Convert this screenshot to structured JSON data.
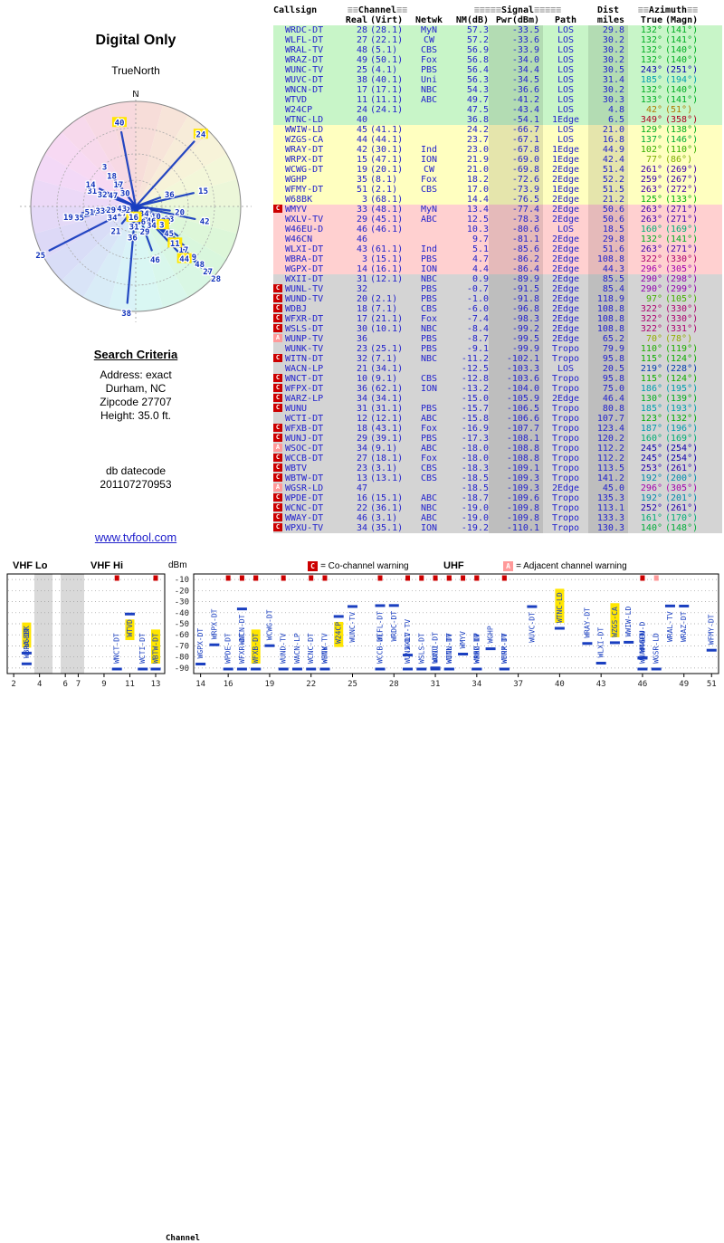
{
  "radar": {
    "title": "Digital Only",
    "orientation_label": "TrueNorth",
    "north_label": "N"
  },
  "search_criteria": {
    "heading": "Search Criteria",
    "lines": [
      "Address: exact",
      "Durham, NC",
      "Zipcode 27707",
      "Height: 35.0 ft."
    ],
    "datecode_label": "db datecode",
    "datecode": "201107270953"
  },
  "link": "www.tvfool.com",
  "table": {
    "header": {
      "callsign": "Callsign",
      "channel": "Channel",
      "signal": "Signal",
      "dist": "Dist",
      "azimuth": "Azimuth",
      "real": "Real",
      "virt": "(Virt)",
      "netwk": "Netwk",
      "nm": "NM(dB)",
      "pwr": "Pwr(dBm)",
      "path": "Path",
      "miles": "miles",
      "true": "True",
      "magn": "(Magn)",
      "decor_channel": "≡≡",
      "decor_signal": "≡≡≡≡≡",
      "decor_azimuth": "≡≡"
    }
  },
  "stations": [
    {
      "call": "WRDC-DT",
      "real": 28,
      "virt": "(28.1)",
      "net": "MyN",
      "nm": 57.3,
      "pwr": -33.5,
      "path": "LOS",
      "dist": 29.8,
      "az": 132,
      "magn": 141,
      "cls": "green",
      "warn": "",
      "hl": false
    },
    {
      "call": "WLFL-DT",
      "real": 27,
      "virt": "(22.1)",
      "net": "CW",
      "nm": 57.2,
      "pwr": -33.6,
      "path": "LOS",
      "dist": 30.2,
      "az": 132,
      "magn": 141,
      "cls": "green",
      "warn": "",
      "hl": false
    },
    {
      "call": "WRAL-TV",
      "real": 48,
      "virt": "(5.1)",
      "net": "CBS",
      "nm": 56.9,
      "pwr": -33.9,
      "path": "LOS",
      "dist": 30.2,
      "az": 132,
      "magn": 140,
      "cls": "green",
      "warn": "",
      "hl": false
    },
    {
      "call": "WRAZ-DT",
      "real": 49,
      "virt": "(50.1)",
      "net": "Fox",
      "nm": 56.8,
      "pwr": -34.0,
      "path": "LOS",
      "dist": 30.2,
      "az": 132,
      "magn": 140,
      "cls": "green",
      "warn": "",
      "hl": false
    },
    {
      "call": "WUNC-TV",
      "real": 25,
      "virt": "(4.1)",
      "net": "PBS",
      "nm": 56.4,
      "pwr": -34.4,
      "path": "LOS",
      "dist": 30.5,
      "az": 243,
      "magn": 251,
      "cls": "green",
      "warn": "",
      "hl": false
    },
    {
      "call": "WUVC-DT",
      "real": 38,
      "virt": "(40.1)",
      "net": "Uni",
      "nm": 56.3,
      "pwr": -34.5,
      "path": "LOS",
      "dist": 31.4,
      "az": 185,
      "magn": 194,
      "cls": "green",
      "warn": "",
      "hl": false
    },
    {
      "call": "WNCN-DT",
      "real": 17,
      "virt": "(17.1)",
      "net": "NBC",
      "nm": 54.3,
      "pwr": -36.6,
      "path": "LOS",
      "dist": 30.2,
      "az": 132,
      "magn": 140,
      "cls": "green",
      "warn": "",
      "hl": false
    },
    {
      "call": "WTVD",
      "real": 11,
      "virt": "(11.1)",
      "net": "ABC",
      "nm": 49.7,
      "pwr": -41.2,
      "path": "LOS",
      "dist": 30.3,
      "az": 133,
      "magn": 141,
      "cls": "green",
      "warn": "",
      "hl": true
    },
    {
      "call": "W24CP",
      "real": 24,
      "virt": "(24.1)",
      "net": "",
      "nm": 47.5,
      "pwr": -43.4,
      "path": "LOS",
      "dist": 4.8,
      "az": 42,
      "magn": 51,
      "cls": "green",
      "warn": "",
      "hl": true
    },
    {
      "call": "WTNC-LD",
      "real": 40,
      "virt": "",
      "net": "",
      "nm": 36.8,
      "pwr": -54.1,
      "path": "1Edge",
      "dist": 6.5,
      "az": 349,
      "magn": 358,
      "cls": "green",
      "warn": "",
      "hl": true
    },
    {
      "call": "WWIW-LD",
      "real": 45,
      "virt": "(41.1)",
      "net": "",
      "nm": 24.2,
      "pwr": -66.7,
      "path": "LOS",
      "dist": 21.0,
      "az": 129,
      "magn": 138,
      "cls": "yellow",
      "warn": "",
      "hl": false
    },
    {
      "call": "WZGS-CA",
      "real": 44,
      "virt": "(44.1)",
      "net": "",
      "nm": 23.7,
      "pwr": -67.1,
      "path": "LOS",
      "dist": 16.8,
      "az": 137,
      "magn": 146,
      "cls": "yellow",
      "warn": "",
      "hl": true
    },
    {
      "call": "WRAY-DT",
      "real": 42,
      "virt": "(30.1)",
      "net": "Ind",
      "nm": 23.0,
      "pwr": -67.8,
      "path": "1Edge",
      "dist": 44.9,
      "az": 102,
      "magn": 110,
      "cls": "yellow",
      "warn": "",
      "hl": false
    },
    {
      "call": "WRPX-DT",
      "real": 15,
      "virt": "(47.1)",
      "net": "ION",
      "nm": 21.9,
      "pwr": -69.0,
      "path": "1Edge",
      "dist": 42.4,
      "az": 77,
      "magn": 86,
      "cls": "yellow",
      "warn": "",
      "hl": false
    },
    {
      "call": "WCWG-DT",
      "real": 19,
      "virt": "(20.1)",
      "net": "CW",
      "nm": 21.0,
      "pwr": -69.8,
      "path": "2Edge",
      "dist": 51.4,
      "az": 261,
      "magn": 269,
      "cls": "yellow",
      "warn": "",
      "hl": false
    },
    {
      "call": "WGHP",
      "real": 35,
      "virt": "(8.1)",
      "net": "Fox",
      "nm": 18.2,
      "pwr": -72.6,
      "path": "2Edge",
      "dist": 52.2,
      "az": 259,
      "magn": 267,
      "cls": "yellow",
      "warn": "",
      "hl": false
    },
    {
      "call": "WFMY-DT",
      "real": 51,
      "virt": "(2.1)",
      "net": "CBS",
      "nm": 17.0,
      "pwr": -73.9,
      "path": "1Edge",
      "dist": 51.5,
      "az": 263,
      "magn": 272,
      "cls": "yellow",
      "warn": "",
      "hl": false
    },
    {
      "call": "W68BK",
      "real": 3,
      "virt": "(68.1)",
      "net": "",
      "nm": 14.4,
      "pwr": -76.5,
      "path": "2Edge",
      "dist": 21.2,
      "az": 125,
      "magn": 133,
      "cls": "yellow",
      "warn": "",
      "hl": true
    },
    {
      "call": "WMYV",
      "real": 33,
      "virt": "(48.1)",
      "net": "MyN",
      "nm": 13.4,
      "pwr": -77.4,
      "path": "2Edge",
      "dist": 50.6,
      "az": 263,
      "magn": 271,
      "cls": "pink",
      "warn": "C",
      "hl": false
    },
    {
      "call": "WXLV-TV",
      "real": 29,
      "virt": "(45.1)",
      "net": "ABC",
      "nm": 12.5,
      "pwr": -78.3,
      "path": "2Edge",
      "dist": 50.6,
      "az": 263,
      "magn": 271,
      "cls": "pink",
      "warn": "",
      "hl": false
    },
    {
      "call": "W46EU-D",
      "real": 46,
      "virt": "(46.1)",
      "net": "",
      "nm": 10.3,
      "pwr": -80.6,
      "path": "LOS",
      "dist": 18.5,
      "az": 160,
      "magn": 169,
      "cls": "pink",
      "warn": "",
      "hl": false
    },
    {
      "call": "W46CN",
      "real": 46,
      "virt": "",
      "net": "",
      "nm": 9.7,
      "pwr": -81.1,
      "path": "2Edge",
      "dist": 29.8,
      "az": 132,
      "magn": 141,
      "cls": "pink",
      "warn": "",
      "hl": false
    },
    {
      "call": "WLXI-DT",
      "real": 43,
      "virt": "(61.1)",
      "net": "Ind",
      "nm": 5.1,
      "pwr": -85.6,
      "path": "2Edge",
      "dist": 51.6,
      "az": 263,
      "magn": 271,
      "cls": "pink",
      "warn": "",
      "hl": false
    },
    {
      "call": "WBRA-DT",
      "real": 3,
      "virt": "(15.1)",
      "net": "PBS",
      "nm": 4.7,
      "pwr": -86.2,
      "path": "2Edge",
      "dist": 108.8,
      "az": 322,
      "magn": 330,
      "cls": "pink",
      "warn": "",
      "hl": false
    },
    {
      "call": "WGPX-DT",
      "real": 14,
      "virt": "(16.1)",
      "net": "ION",
      "nm": 4.4,
      "pwr": -86.4,
      "path": "2Edge",
      "dist": 44.3,
      "az": 296,
      "magn": 305,
      "cls": "pink",
      "warn": "",
      "hl": false
    },
    {
      "call": "WXII-DT",
      "real": 31,
      "virt": "(12.1)",
      "net": "NBC",
      "nm": 0.9,
      "pwr": -89.9,
      "path": "2Edge",
      "dist": 85.5,
      "az": 290,
      "magn": 298,
      "cls": "gray",
      "warn": "",
      "hl": false
    },
    {
      "call": "WUNL-TV",
      "real": 32,
      "virt": "",
      "net": "PBS",
      "nm": -0.7,
      "pwr": -91.5,
      "path": "2Edge",
      "dist": 85.4,
      "az": 290,
      "magn": 299,
      "cls": "gray",
      "warn": "C",
      "hl": false
    },
    {
      "call": "WUND-TV",
      "real": 20,
      "virt": "(2.1)",
      "net": "PBS",
      "nm": -1.0,
      "pwr": -91.8,
      "path": "2Edge",
      "dist": 118.9,
      "az": 97,
      "magn": 105,
      "cls": "gray",
      "warn": "C",
      "hl": false
    },
    {
      "call": "WDBJ",
      "real": 18,
      "virt": "(7.1)",
      "net": "CBS",
      "nm": -6.0,
      "pwr": -96.8,
      "path": "2Edge",
      "dist": 108.8,
      "az": 322,
      "magn": 330,
      "cls": "gray",
      "warn": "C",
      "hl": false
    },
    {
      "call": "WFXR-DT",
      "real": 17,
      "virt": "(21.1)",
      "net": "Fox",
      "nm": -7.4,
      "pwr": -98.3,
      "path": "2Edge",
      "dist": 108.8,
      "az": 322,
      "magn": 330,
      "cls": "gray",
      "warn": "C",
      "hl": false
    },
    {
      "call": "WSLS-DT",
      "real": 30,
      "virt": "(10.1)",
      "net": "NBC",
      "nm": -8.4,
      "pwr": -99.2,
      "path": "2Edge",
      "dist": 108.8,
      "az": 322,
      "magn": 331,
      "cls": "gray",
      "warn": "C",
      "hl": false
    },
    {
      "call": "WUNP-TV",
      "real": 36,
      "virt": "",
      "net": "PBS",
      "nm": -8.7,
      "pwr": -99.5,
      "path": "2Edge",
      "dist": 65.2,
      "az": 70,
      "magn": 78,
      "cls": "gray",
      "warn": "A",
      "hl": false
    },
    {
      "call": "WUNK-TV",
      "real": 23,
      "virt": "(25.1)",
      "net": "PBS",
      "nm": -9.1,
      "pwr": -99.9,
      "path": "Tropo",
      "dist": 79.9,
      "az": 110,
      "magn": 119,
      "cls": "gray",
      "warn": "",
      "hl": false
    },
    {
      "call": "WITN-DT",
      "real": 32,
      "virt": "(7.1)",
      "net": "NBC",
      "nm": -11.2,
      "pwr": -102.1,
      "path": "Tropo",
      "dist": 95.8,
      "az": 115,
      "magn": 124,
      "cls": "gray",
      "warn": "C",
      "hl": false
    },
    {
      "call": "WACN-LP",
      "real": 21,
      "virt": "(34.1)",
      "net": "",
      "nm": -12.5,
      "pwr": -103.3,
      "path": "LOS",
      "dist": 20.5,
      "az": 219,
      "magn": 228,
      "cls": "gray",
      "warn": "",
      "hl": false
    },
    {
      "call": "WNCT-DT",
      "real": 10,
      "virt": "(9.1)",
      "net": "CBS",
      "nm": -12.8,
      "pwr": -103.6,
      "path": "Tropo",
      "dist": 95.8,
      "az": 115,
      "magn": 124,
      "cls": "gray",
      "warn": "C",
      "hl": false
    },
    {
      "call": "WFPX-DT",
      "real": 36,
      "virt": "(62.1)",
      "net": "ION",
      "nm": -13.2,
      "pwr": -104.0,
      "path": "Tropo",
      "dist": 75.0,
      "az": 186,
      "magn": 195,
      "cls": "gray",
      "warn": "C",
      "hl": false
    },
    {
      "call": "WARZ-LP",
      "real": 34,
      "virt": "(34.1)",
      "net": "",
      "nm": -15.0,
      "pwr": -105.9,
      "path": "2Edge",
      "dist": 46.4,
      "az": 130,
      "magn": 139,
      "cls": "gray",
      "warn": "C",
      "hl": false
    },
    {
      "call": "WUNU",
      "real": 31,
      "virt": "(31.1)",
      "net": "PBS",
      "nm": -15.7,
      "pwr": -106.5,
      "path": "Tropo",
      "dist": 80.8,
      "az": 185,
      "magn": 193,
      "cls": "gray",
      "warn": "C",
      "hl": false
    },
    {
      "call": "WCTI-DT",
      "real": 12,
      "virt": "(12.1)",
      "net": "ABC",
      "nm": -15.8,
      "pwr": -106.6,
      "path": "Tropo",
      "dist": 107.7,
      "az": 123,
      "magn": 132,
      "cls": "gray",
      "warn": "",
      "hl": false
    },
    {
      "call": "WFXB-DT",
      "real": 18,
      "virt": "(43.1)",
      "net": "Fox",
      "nm": -16.9,
      "pwr": -107.7,
      "path": "Tropo",
      "dist": 123.4,
      "az": 187,
      "magn": 196,
      "cls": "gray",
      "warn": "C",
      "hl": true
    },
    {
      "call": "WUNJ-DT",
      "real": 29,
      "virt": "(39.1)",
      "net": "PBS",
      "nm": -17.3,
      "pwr": -108.1,
      "path": "Tropo",
      "dist": 120.2,
      "az": 160,
      "magn": 169,
      "cls": "gray",
      "warn": "C",
      "hl": false
    },
    {
      "call": "WSOC-DT",
      "real": 34,
      "virt": "(9.1)",
      "net": "ABC",
      "nm": -18.0,
      "pwr": -108.8,
      "path": "Tropo",
      "dist": 112.2,
      "az": 245,
      "magn": 254,
      "cls": "gray",
      "warn": "A",
      "hl": false
    },
    {
      "call": "WCCB-DT",
      "real": 27,
      "virt": "(18.1)",
      "net": "Fox",
      "nm": -18.0,
      "pwr": -108.8,
      "path": "Tropo",
      "dist": 112.2,
      "az": 245,
      "magn": 254,
      "cls": "gray",
      "warn": "C",
      "hl": false
    },
    {
      "call": "WBTV",
      "real": 23,
      "virt": "(3.1)",
      "net": "CBS",
      "nm": -18.3,
      "pwr": -109.1,
      "path": "Tropo",
      "dist": 113.5,
      "az": 253,
      "magn": 261,
      "cls": "gray",
      "warn": "C",
      "hl": false
    },
    {
      "call": "WBTW-DT",
      "real": 13,
      "virt": "(13.1)",
      "net": "CBS",
      "nm": -18.5,
      "pwr": -109.3,
      "path": "Tropo",
      "dist": 141.2,
      "az": 192,
      "magn": 200,
      "cls": "gray",
      "warn": "C",
      "hl": true
    },
    {
      "call": "WGSR-LD",
      "real": 47,
      "virt": "",
      "net": "",
      "nm": -18.5,
      "pwr": -109.3,
      "path": "2Edge",
      "dist": 45.0,
      "az": 296,
      "magn": 305,
      "cls": "gray",
      "warn": "A",
      "hl": false
    },
    {
      "call": "WPDE-DT",
      "real": 16,
      "virt": "(15.1)",
      "net": "ABC",
      "nm": -18.7,
      "pwr": -109.6,
      "path": "Tropo",
      "dist": 135.3,
      "az": 192,
      "magn": 201,
      "cls": "gray",
      "warn": "C",
      "hl": false
    },
    {
      "call": "WCNC-DT",
      "real": 22,
      "virt": "(36.1)",
      "net": "NBC",
      "nm": -19.0,
      "pwr": -109.8,
      "path": "Tropo",
      "dist": 113.1,
      "az": 252,
      "magn": 261,
      "cls": "gray",
      "warn": "C",
      "hl": false
    },
    {
      "call": "WWAY-DT",
      "real": 46,
      "virt": "(3.1)",
      "net": "ABC",
      "nm": -19.0,
      "pwr": -109.8,
      "path": "Tropo",
      "dist": 133.3,
      "az": 161,
      "magn": 170,
      "cls": "gray",
      "warn": "C",
      "hl": false
    },
    {
      "call": "WPXU-TV",
      "real": 34,
      "virt": "(35.1)",
      "net": "ION",
      "nm": -19.2,
      "pwr": -110.1,
      "path": "Tropo",
      "dist": 130.3,
      "az": 140,
      "magn": 148,
      "cls": "gray",
      "warn": "C",
      "hl": false
    }
  ],
  "charts": {
    "dbm_label": "dBm",
    "channel_label": "Channel",
    "vhf_lo_label": "VHF Lo",
    "vhf_hi_label": "VHF Hi",
    "uhf_label": "UHF",
    "c_symbol": "C",
    "a_symbol": "A",
    "co_legend": "= Co-channel warning",
    "adj_legend": "= Adjacent channel warning",
    "y_ticks": [
      -10,
      -20,
      -30,
      -40,
      -50,
      -60,
      -70,
      -80,
      -90
    ],
    "vhf_ticks": [
      2,
      4,
      6,
      7,
      9,
      11,
      13
    ],
    "uhf_ticks": [
      14,
      16,
      19,
      22,
      25,
      28,
      31,
      34,
      37,
      40,
      43,
      46,
      49,
      51
    ]
  }
}
